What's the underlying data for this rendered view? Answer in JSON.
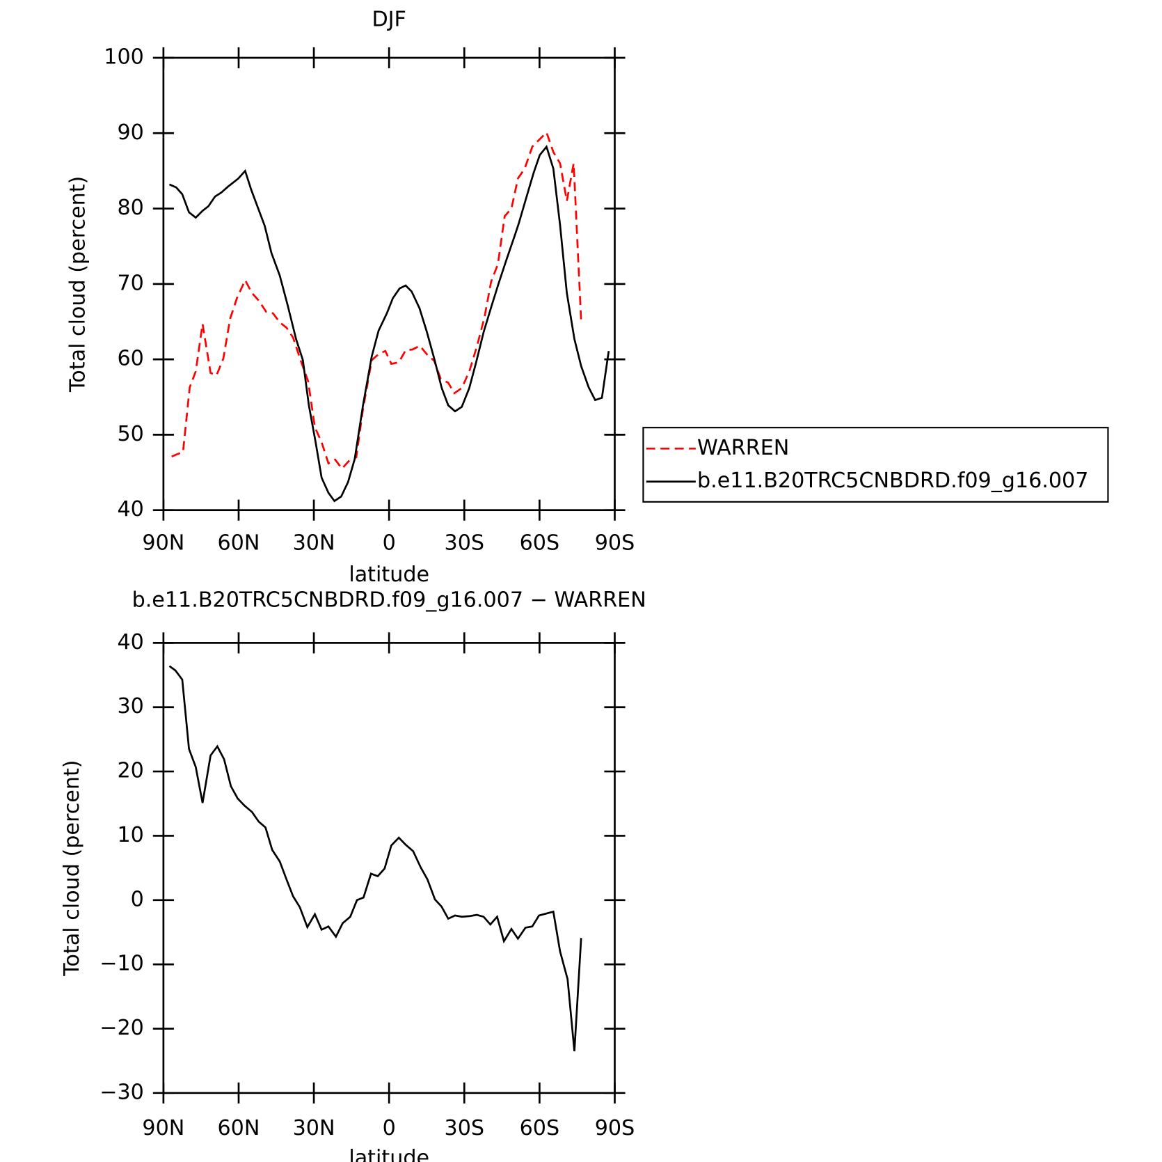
{
  "chart_data": [
    {
      "type": "line",
      "title": "DJF",
      "xlabel": "latitude",
      "ylabel": "Total cloud (percent)",
      "xlim": [
        90,
        -90
      ],
      "xticks": [
        {
          "value": 90,
          "label": "90N"
        },
        {
          "value": 60,
          "label": "60N"
        },
        {
          "value": 30,
          "label": "30N"
        },
        0,
        {
          "value": -30,
          "label": "30S"
        },
        {
          "value": -60,
          "label": "60S"
        },
        {
          "value": -90,
          "label": "90S"
        }
      ],
      "ylim": [
        40,
        100
      ],
      "yticks": [
        40,
        50,
        60,
        70,
        80,
        90,
        100
      ],
      "legend": "right",
      "series": [
        {
          "name": "WARREN",
          "color": "#ff0000",
          "dash": true,
          "x": [
            86.7,
            84.6,
            82.2,
            79.5,
            77.1,
            74.4,
            71.2,
            68.8,
            66.1,
            63.4,
            60.7,
            57.4,
            54.7,
            52,
            49,
            46.3,
            43.6,
            40.9,
            38.3,
            35.3,
            32.3,
            29.6,
            26.9,
            24.2,
            21.5,
            18.8,
            16.1,
            13.1,
            10.4,
            6.9,
            4.2,
            1.5,
            -0.9,
            -3.9,
            -6.6,
            -9.3,
            -12.3,
            -15,
            -18,
            -20.6,
            -23.6,
            -26,
            -29,
            -32,
            -35,
            -38,
            -40.7,
            -43.4,
            -46.1,
            -48.8,
            -51.4,
            -54.1,
            -57.1,
            -59.8,
            -62.8,
            -65.5,
            -68.2,
            -70.9,
            -73.6,
            -76.6
          ],
          "values": [
            47.1,
            47.4,
            47.7,
            56.3,
            58.4,
            64.7,
            58.2,
            57.9,
            60.1,
            65.4,
            68.1,
            70.5,
            68.8,
            67.8,
            66.3,
            66.1,
            64.9,
            64.2,
            62.9,
            59.9,
            57.1,
            51,
            49,
            46.2,
            46.7,
            45.5,
            46.5,
            47,
            53.4,
            59.9,
            60.7,
            61.1,
            59.4,
            59.6,
            61.2,
            61.3,
            61.8,
            60.7,
            59.8,
            57.4,
            56.9,
            55.5,
            56.2,
            58.4,
            61.7,
            65.5,
            70.3,
            72.6,
            79,
            80,
            84,
            85.3,
            88.2,
            89.1,
            90.1,
            87.5,
            86,
            81,
            86,
            65.1
          ]
        },
        {
          "name": "b.e11.B20TRC5CNBDRD.f09_g16.007",
          "color": "#000000",
          "dash": false,
          "x": [
            87.6,
            84.9,
            82.5,
            79.8,
            77.1,
            74.4,
            72.1,
            69.4,
            67,
            64.3,
            61.6,
            60.1,
            57.4,
            55,
            52.3,
            49.6,
            46.9,
            43.6,
            40.4,
            37.1,
            34.4,
            32,
            29.3,
            26.9,
            24.2,
            21.8,
            19.1,
            16.4,
            13.7,
            10.4,
            6.9,
            4.2,
            0.9,
            -1.5,
            -4.2,
            -6.6,
            -9,
            -12.1,
            -15,
            -18,
            -21,
            -23.6,
            -26.3,
            -29,
            -32,
            -34.7,
            -37.7,
            -40.7,
            -43.7,
            -46.7,
            -50,
            -51.7,
            -54.7,
            -57.7,
            -60.1,
            -62.8,
            -65.5,
            -68.2,
            -70.9,
            -73.9,
            -76.6,
            -79.6,
            -82.2,
            -84.9,
            -87.6
          ],
          "values": [
            83.2,
            82.8,
            81.9,
            79.5,
            78.8,
            79.7,
            80.3,
            81.6,
            82.1,
            82.9,
            83.6,
            84,
            85,
            82.5,
            80.1,
            77.7,
            74.1,
            71.1,
            67.1,
            62.7,
            59.9,
            53.9,
            49,
            44.3,
            42.3,
            41.2,
            41.8,
            43.7,
            46.8,
            53.9,
            60.4,
            63.8,
            66.1,
            68.1,
            69.4,
            69.8,
            69,
            66.8,
            63.7,
            60.1,
            56.2,
            53.9,
            53.1,
            53.7,
            56.2,
            59.6,
            63.6,
            66.9,
            70.1,
            73.1,
            76.3,
            78,
            81.4,
            84.8,
            87.1,
            88.2,
            85.3,
            77.8,
            68.8,
            62.7,
            59.1,
            56.3,
            54.6,
            54.9,
            61.1
          ]
        }
      ]
    },
    {
      "type": "line",
      "title": "b.e11.B20TRC5CNBDRD.f09_g16.007 − WARREN",
      "xlabel": "latitude",
      "ylabel": "Total cloud (percent)",
      "xlim": [
        90,
        -90
      ],
      "xticks": [
        {
          "value": 90,
          "label": "90N"
        },
        {
          "value": 60,
          "label": "60N"
        },
        {
          "value": 30,
          "label": "30N"
        },
        0,
        {
          "value": -30,
          "label": "30S"
        },
        {
          "value": -60,
          "label": "60S"
        },
        {
          "value": -90,
          "label": "90S"
        }
      ],
      "ylim": [
        -30,
        40
      ],
      "yticks": [
        {
          "value": -30,
          "label": "−30"
        },
        {
          "value": -20,
          "label": "−20"
        },
        {
          "value": -10,
          "label": "−10"
        },
        0,
        10,
        20,
        30,
        40
      ],
      "series": [
        {
          "color": "#000000",
          "dash": false,
          "x": [
            87.6,
            85.2,
            82.5,
            79.8,
            77.1,
            74.4,
            71.2,
            68.5,
            65.8,
            63.1,
            60.4,
            57.7,
            54.7,
            52,
            49.3,
            46.6,
            43.6,
            40.9,
            38.3,
            35.6,
            32.6,
            29.6,
            26.9,
            24.2,
            21.2,
            18.5,
            15.5,
            12.8,
            10.2,
            7.2,
            4.5,
            1.8,
            -0.9,
            -3.9,
            -6.6,
            -9.6,
            -12.6,
            -15.3,
            -18.3,
            -20.9,
            -23.6,
            -26.3,
            -29,
            -32,
            -35,
            -37.7,
            -40.4,
            -43.1,
            -45.8,
            -48.8,
            -51.4,
            -54.4,
            -57.1,
            -59.8,
            -65.5,
            -68.2,
            -71.2,
            -73.9,
            -76.6
          ],
          "values": [
            36.4,
            35.7,
            34.3,
            23.5,
            20.7,
            15.1,
            22.5,
            23.9,
            21.9,
            17.7,
            15.8,
            14.7,
            13.7,
            12.2,
            11.3,
            7.8,
            6,
            3.2,
            0.6,
            -1.1,
            -4.2,
            -2.2,
            -4.6,
            -4.1,
            -5.7,
            -3.6,
            -2.6,
            0,
            0.4,
            4.1,
            3.7,
            4.9,
            8.5,
            9.7,
            8.6,
            7.6,
            5.1,
            3.2,
            0.1,
            -1,
            -2.9,
            -2.4,
            -2.6,
            -2.5,
            -2.3,
            -2.6,
            -3.8,
            -2.6,
            -6.4,
            -4.5,
            -6,
            -4.3,
            -4.1,
            -2.4,
            -1.8,
            -8,
            -12.3,
            -23.5,
            -5.9
          ]
        }
      ]
    }
  ]
}
